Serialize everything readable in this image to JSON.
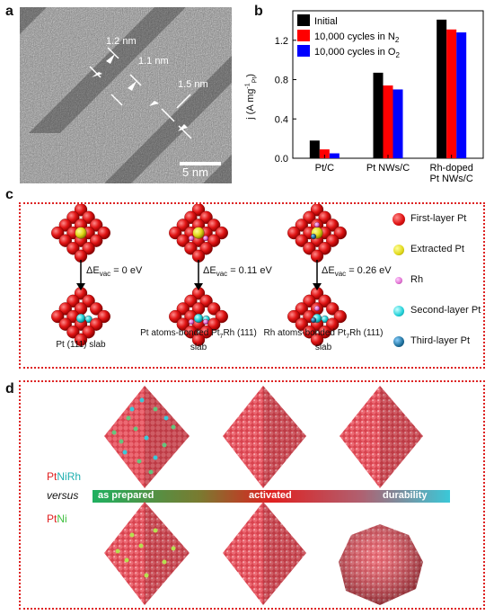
{
  "panel_labels": {
    "a": "a",
    "b": "b",
    "c": "c",
    "d": "d"
  },
  "panel_a": {
    "measurements": [
      "1.2 nm",
      "1.1 nm",
      "1.5 nm"
    ],
    "scale_bar": "5 nm"
  },
  "chart_data": {
    "type": "bar",
    "categories": [
      "Pt/C",
      "Pt NWs/C",
      "Rh-doped Pt NWs/C"
    ],
    "category_display": [
      [
        "Pt/C"
      ],
      [
        "Pt NWs/C"
      ],
      [
        "Rh-doped",
        "Pt NWs/C"
      ]
    ],
    "series": [
      {
        "name": "Initial",
        "color": "#000000",
        "values": [
          0.18,
          0.87,
          1.41
        ]
      },
      {
        "name": "10,000 cycles in N2",
        "color": "#ff0000",
        "values": [
          0.09,
          0.74,
          1.31
        ]
      },
      {
        "name": "10,000 cycles in O2",
        "color": "#0000ff",
        "values": [
          0.05,
          0.7,
          1.28
        ]
      }
    ],
    "legend_display": [
      "Initial",
      "10,000 cycles in N",
      "10,000 cycles in O"
    ],
    "legend_subscripts": [
      "",
      "2",
      "2"
    ],
    "ylabel": "j (A mg",
    "ylabel_sup": "-1",
    "ylabel_sub": "Pt",
    "ylabel_end": ")",
    "ylim": [
      0,
      1.5
    ],
    "yticks": [
      "0.0",
      "0.4",
      "0.8",
      "1.2"
    ],
    "yticks_values": [
      0.0,
      0.4,
      0.8,
      1.2
    ],
    "legend_position": "top-left"
  },
  "panel_c": {
    "delta_e": [
      "ΔE",
      "ΔE",
      "ΔE"
    ],
    "delta_e_sub": [
      "vac",
      "vac",
      "vac"
    ],
    "delta_e_values": [
      " = 0 eV",
      " = 0.11 eV",
      " = 0.26 eV"
    ],
    "captions": [
      "Pt (111) slab",
      "Pt atoms-bonded Pt",
      "Rh atoms-bonded Pt"
    ],
    "caption_subs": [
      "",
      "7",
      "7"
    ],
    "caption_tails": [
      "",
      "Rh (111)",
      "Rh (111)"
    ],
    "caption_line2": [
      "",
      "slab",
      "slab"
    ],
    "legend": [
      {
        "label": "First-layer Pt",
        "color": "#e01010"
      },
      {
        "label": "Extracted Pt",
        "color": "#e8e020"
      },
      {
        "label": "Rh",
        "color": "#e070d0"
      },
      {
        "label": "Second-layer Pt",
        "color": "#20d0d8"
      },
      {
        "label": "Third-layer Pt",
        "color": "#1c6e9a"
      }
    ]
  },
  "panel_d": {
    "label_ptnirh_pt": "Pt",
    "label_ptnirh_ni": "Ni",
    "label_ptnirh_rh": "Rh",
    "versus": "versus",
    "label_ptni_pt": "Pt",
    "label_ptni_ni": "Ni",
    "bar_labels": [
      "as prepared",
      "activated",
      "durability"
    ]
  }
}
